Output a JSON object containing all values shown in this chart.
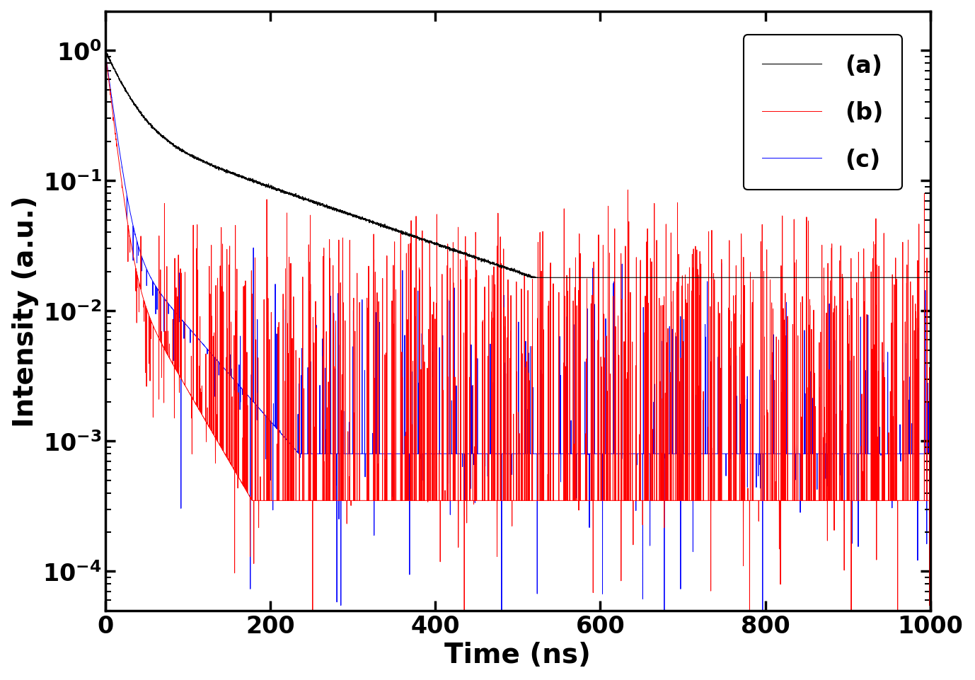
{
  "title": "",
  "xlabel": "Time (ns)",
  "ylabel": "Intensity (a.u.)",
  "xlim": [
    0,
    1000
  ],
  "ylim": [
    5e-05,
    2
  ],
  "legend_labels": [
    "(a)",
    "(b)",
    "(c)"
  ],
  "xlabel_fontsize": 28,
  "ylabel_fontsize": 28,
  "tick_fontsize": 24,
  "legend_fontsize": 24,
  "background_color": "#ffffff",
  "curve_a": {
    "color": "black",
    "A1": 0.75,
    "tau1": 25,
    "A2": 0.24,
    "tau2": 200,
    "noise_scale": 0.004,
    "floor": 0.018
  },
  "curve_b": {
    "color": "red",
    "A1": 0.97,
    "tau1": 8,
    "A2": 0.03,
    "tau2": 40,
    "noise_scale": 0.0008,
    "floor": 0.00035,
    "spike_prob": 0.08,
    "spike_scale": 0.003
  },
  "curve_c": {
    "color": "blue",
    "A1": 0.96,
    "tau1": 9,
    "A2": 0.04,
    "tau2": 60,
    "noise_scale": 0.0006,
    "floor": 0.0008,
    "spike_prob": 0.04,
    "spike_scale": 0.001
  }
}
